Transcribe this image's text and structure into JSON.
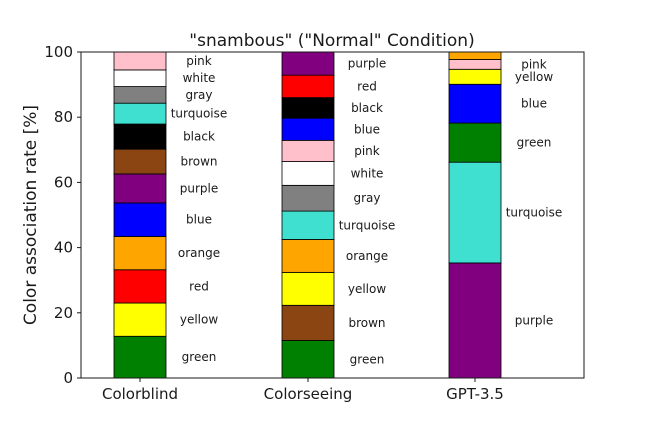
{
  "chart_data": {
    "type": "bar",
    "stacked": true,
    "title": "\"snambous\" (\"Normal\" Condition)",
    "xlabel": "",
    "ylabel": "Color association rate [%]",
    "ylim": [
      0,
      100
    ],
    "yticks": [
      "0",
      "20",
      "40",
      "60",
      "80",
      "100"
    ],
    "grid": false,
    "legend": "none",
    "categories": [
      "Colorblind",
      "Colorseeing",
      "GPT-3.5"
    ],
    "bars": [
      {
        "category": "Colorblind",
        "segments": [
          {
            "label": "green",
            "value": 12.8,
            "color": "#008000"
          },
          {
            "label": "yellow",
            "value": 10.2,
            "color": "#ffff00"
          },
          {
            "label": "red",
            "value": 10.2,
            "color": "#ff0000"
          },
          {
            "label": "orange",
            "value": 10.2,
            "color": "#ffa500"
          },
          {
            "label": "blue",
            "value": 10.3,
            "color": "#0000ff"
          },
          {
            "label": "purple",
            "value": 8.9,
            "color": "#800080"
          },
          {
            "label": "brown",
            "value": 7.6,
            "color": "#8b4513"
          },
          {
            "label": "black",
            "value": 7.7,
            "color": "#000000"
          },
          {
            "label": "turquoise",
            "value": 6.4,
            "color": "#40e0d0"
          },
          {
            "label": "gray",
            "value": 5.1,
            "color": "#808080"
          },
          {
            "label": "white",
            "value": 5.1,
            "color": "#ffffff"
          },
          {
            "label": "pink",
            "value": 5.5,
            "color": "#ffc0cb"
          }
        ]
      },
      {
        "category": "Colorseeing",
        "segments": [
          {
            "label": "green",
            "value": 11.5,
            "color": "#008000"
          },
          {
            "label": "brown",
            "value": 10.8,
            "color": "#8b4513"
          },
          {
            "label": "yellow",
            "value": 10.1,
            "color": "#ffff00"
          },
          {
            "label": "orange",
            "value": 10.1,
            "color": "#ffa500"
          },
          {
            "label": "turquoise",
            "value": 8.7,
            "color": "#40e0d0"
          },
          {
            "label": "gray",
            "value": 7.9,
            "color": "#808080"
          },
          {
            "label": "white",
            "value": 7.3,
            "color": "#ffffff"
          },
          {
            "label": "pink",
            "value": 6.5,
            "color": "#ffc0cb"
          },
          {
            "label": "blue",
            "value": 6.8,
            "color": "#0000ff"
          },
          {
            "label": "black",
            "value": 6.3,
            "color": "#000000"
          },
          {
            "label": "red",
            "value": 6.9,
            "color": "#ff0000"
          },
          {
            "label": "purple",
            "value": 7.1,
            "color": "#800080"
          }
        ]
      },
      {
        "category": "GPT-3.5",
        "segments": [
          {
            "label": "purple",
            "value": 35.3,
            "color": "#800080"
          },
          {
            "label": "turquoise",
            "value": 30.9,
            "color": "#40e0d0"
          },
          {
            "label": "green",
            "value": 12.0,
            "color": "#008000"
          },
          {
            "label": "blue",
            "value": 11.9,
            "color": "#0000ff"
          },
          {
            "label": "yellow",
            "value": 4.6,
            "color": "#ffff00"
          },
          {
            "label": "pink",
            "value": 3.0,
            "color": "#ffc0cb"
          },
          {
            "label": "",
            "value": 2.3,
            "color": "#ffa500"
          }
        ]
      }
    ]
  }
}
